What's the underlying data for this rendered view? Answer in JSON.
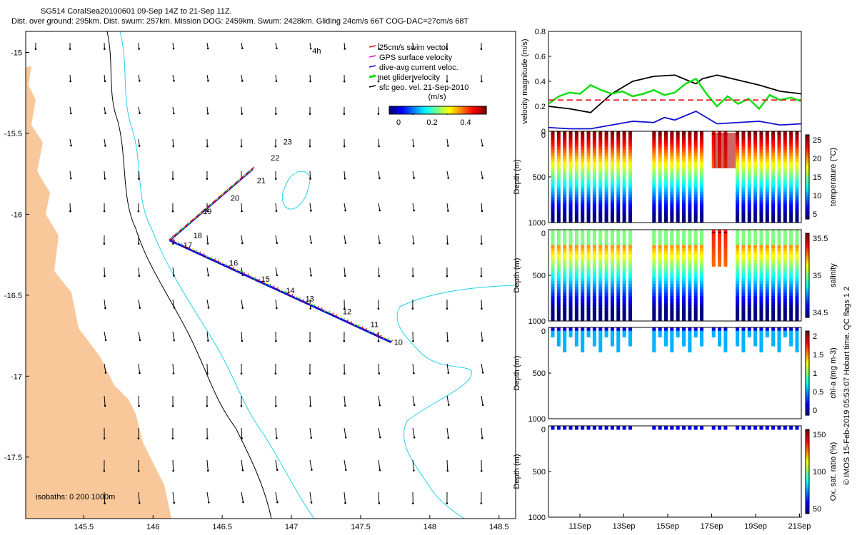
{
  "header": {
    "line1": "SG514 CoralSea20100601 09-Sep 14Z to 21-Sep 11Z.",
    "line2": "Dist. over ground: 295km. Dist. swum: 257km. Mission DOG: 2459km. Swum: 2428km. Gliding 24cm/s 66T COG-DAC=27cm/s 68T"
  },
  "side_note": "© IMOS 15-Feb-2019 05:53:07 Hobart time. QC flags 1 2",
  "colors": {
    "land": "#f9c89a",
    "isobath_200": "#000000",
    "isobath_1000": "#22d3e6",
    "swim": "#e8141c",
    "gps": "#e010e0",
    "dac": "#1010d0",
    "net": "#10e010",
    "geo": "#000000"
  },
  "chart_data": [
    {
      "type": "scatter",
      "title": "",
      "xlabel": "",
      "ylabel": "",
      "xlim": [
        145.08,
        148.62
      ],
      "ylim": [
        -17.88,
        -14.87
      ],
      "x_ticks": [
        "145.5",
        "146",
        "146.5",
        "147",
        "147.5",
        "148",
        "148.5"
      ],
      "y_ticks": [
        "-15",
        "-15.5",
        "-16",
        "-16.5",
        "-17",
        "-17.5"
      ],
      "legend": [
        "25cm/s swim vector",
        "GPS surface velocity",
        "dive-avg current veloc.",
        "net glider velocity",
        "sfc geo. vel. 21-Sep-2010"
      ],
      "legend_placement": "top-right",
      "legend_units": "(m/s)",
      "colorbar_ticks": [
        "0",
        "0.2",
        "0.4"
      ],
      "isobaths_label": "isobaths: 0   200  1000m",
      "track_labels": [
        {
          "t": "10",
          "x": 147.72,
          "y": -16.79
        },
        {
          "t": "11",
          "x": 147.55,
          "y": -16.68
        },
        {
          "t": "12",
          "x": 147.35,
          "y": -16.6
        },
        {
          "t": "13",
          "x": 147.08,
          "y": -16.52
        },
        {
          "t": "14",
          "x": 146.94,
          "y": -16.47
        },
        {
          "t": "15",
          "x": 146.76,
          "y": -16.4
        },
        {
          "t": "16",
          "x": 146.53,
          "y": -16.3
        },
        {
          "t": "17",
          "x": 146.2,
          "y": -16.19
        },
        {
          "t": "18",
          "x": 146.27,
          "y": -16.13
        },
        {
          "t": "19",
          "x": 146.34,
          "y": -15.98
        },
        {
          "t": "20",
          "x": 146.54,
          "y": -15.9
        },
        {
          "t": "21",
          "x": 146.73,
          "y": -15.79
        },
        {
          "t": "22",
          "x": 146.83,
          "y": -15.65
        },
        {
          "t": "23",
          "x": 146.92,
          "y": -15.55
        },
        {
          "t": "4h",
          "x": 147.13,
          "y": -14.99
        }
      ],
      "track_legs": [
        {
          "from": [
            147.72,
            -16.79
          ],
          "to": [
            146.12,
            -16.16
          ]
        },
        {
          "from": [
            146.12,
            -16.16
          ],
          "to": [
            146.72,
            -15.72
          ]
        }
      ]
    },
    {
      "type": "line",
      "title": "",
      "ylabel": "velocity magnitude (m/s)",
      "ylim": [
        0,
        0.8
      ],
      "y_ticks": [
        "0",
        "0.2",
        "0.4",
        "0.6",
        "0.8"
      ],
      "xlim": [
        0,
        12
      ],
      "series": [
        {
          "name": "",
          "color": "#000000",
          "x": [
            0,
            1,
            2,
            3,
            4,
            5,
            6,
            7,
            7.3,
            8,
            9,
            10,
            11,
            12
          ],
          "values": [
            0.2,
            0.18,
            0.15,
            0.3,
            0.4,
            0.44,
            0.45,
            0.38,
            0.42,
            0.45,
            0.41,
            0.37,
            0.32,
            0.3
          ]
        },
        {
          "name": "",
          "color": "#10e010",
          "x": [
            0,
            0.5,
            1,
            1.5,
            2,
            2.5,
            3,
            3.5,
            4,
            4.5,
            5,
            5.5,
            6,
            6.5,
            7,
            7.5,
            8,
            8.5,
            9,
            9.5,
            10,
            10.5,
            11,
            11.5,
            12
          ],
          "values": [
            0.22,
            0.28,
            0.31,
            0.3,
            0.37,
            0.33,
            0.3,
            0.32,
            0.28,
            0.3,
            0.33,
            0.29,
            0.31,
            0.38,
            0.42,
            0.3,
            0.2,
            0.28,
            0.22,
            0.26,
            0.18,
            0.29,
            0.25,
            0.27,
            0.24
          ]
        },
        {
          "name": "",
          "color": "#1010d0",
          "x": [
            0,
            1,
            2,
            3,
            4,
            5,
            5.5,
            6,
            7,
            8,
            9,
            10,
            11,
            12
          ],
          "values": [
            0.03,
            0.02,
            0.02,
            0.05,
            0.08,
            0.07,
            0.11,
            0.09,
            0.16,
            0.06,
            0.07,
            0.08,
            0.05,
            0.06
          ]
        },
        {
          "name": "",
          "color": "#e8141c",
          "x": [
            0,
            12
          ],
          "values": [
            0.25,
            0.25
          ],
          "dashed": true
        }
      ]
    },
    {
      "type": "heatmap",
      "ylabel": "Depth (m)",
      "clabel": "temperature (°C)",
      "ylim": [
        0,
        1000
      ],
      "y_ticks": [
        "0",
        "500",
        "1000"
      ],
      "colorbar_ticks": [
        "25",
        "20",
        "15",
        "10",
        "5"
      ]
    },
    {
      "type": "heatmap",
      "ylabel": "Depth (m)",
      "clabel": "salinity",
      "ylim": [
        0,
        1000
      ],
      "y_ticks": [
        "0",
        "500",
        "1000"
      ],
      "colorbar_ticks": [
        "35.5",
        "35",
        "34.5"
      ]
    },
    {
      "type": "heatmap",
      "ylabel": "Depth (m)",
      "clabel": "chl-a (mg m-3)",
      "ylim": [
        0,
        1000
      ],
      "y_ticks": [
        "0",
        "500",
        "1000"
      ],
      "colorbar_ticks": [
        "2",
        "1.5",
        "1",
        "0.5",
        "0"
      ]
    },
    {
      "type": "heatmap",
      "ylabel": "Depth (m)",
      "clabel": "Ox. sat. ratio (%)",
      "ylim": [
        0,
        1000
      ],
      "y_ticks": [
        "0",
        "500",
        "1000"
      ],
      "colorbar_ticks": [
        "150",
        "100",
        "50"
      ],
      "x_ticks": [
        "11Sep",
        "13Sep",
        "15Sep",
        "17Sep",
        "19Sep",
        "21Sep"
      ]
    }
  ]
}
